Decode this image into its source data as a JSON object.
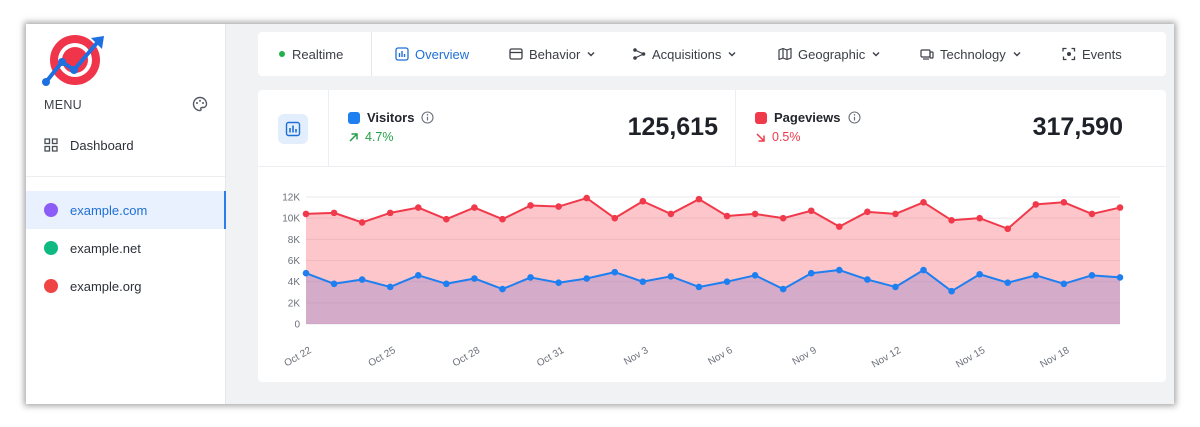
{
  "sidebar": {
    "menu_label": "MENU",
    "dashboard_label": "Dashboard",
    "sites": [
      {
        "label": "example.com",
        "color": "#8b5cf6",
        "active": true
      },
      {
        "label": "example.net",
        "color": "#10b981",
        "active": false
      },
      {
        "label": "example.org",
        "color": "#ef4444",
        "active": false
      }
    ]
  },
  "nav": {
    "tabs": [
      {
        "label": "Realtime",
        "icon": "live-dot-icon"
      },
      {
        "label": "Overview",
        "icon": "bar-chart-icon"
      },
      {
        "label": "Behavior",
        "icon": "window-icon"
      },
      {
        "label": "Acquisitions",
        "icon": "share-nodes-icon"
      },
      {
        "label": "Geographic",
        "icon": "map-icon"
      },
      {
        "label": "Technology",
        "icon": "devices-icon"
      },
      {
        "label": "Events",
        "icon": "focus-icon"
      }
    ],
    "active_tab": "Overview"
  },
  "metrics": {
    "visitors": {
      "label": "Visitors",
      "change": "4.7%",
      "trend": "up",
      "value": "125,615",
      "color": "#1e7ff0"
    },
    "pageviews": {
      "label": "Pageviews",
      "change": "0.5%",
      "trend": "down",
      "value": "317,590",
      "color": "#f03a4b"
    }
  },
  "chart_data": {
    "type": "area",
    "x": [
      "Oct 22",
      "Oct 23",
      "Oct 24",
      "Oct 25",
      "Oct 26",
      "Oct 27",
      "Oct 28",
      "Oct 29",
      "Oct 30",
      "Oct 31",
      "Nov 1",
      "Nov 2",
      "Nov 3",
      "Nov 4",
      "Nov 5",
      "Nov 6",
      "Nov 7",
      "Nov 8",
      "Nov 9",
      "Nov 10",
      "Nov 11",
      "Nov 12",
      "Nov 13",
      "Nov 14",
      "Nov 15",
      "Nov 16",
      "Nov 17",
      "Nov 18",
      "Nov 19",
      "Nov 20"
    ],
    "x_tick_labels": [
      "Oct 22",
      "Oct 25",
      "Oct 28",
      "Oct 31",
      "Nov 3",
      "Nov 6",
      "Nov 9",
      "Nov 12",
      "Nov 15",
      "Nov 18"
    ],
    "y_tick_labels": [
      "0",
      "2K",
      "4K",
      "6K",
      "8K",
      "10K",
      "12K"
    ],
    "ylim": [
      0,
      12000
    ],
    "grid": true,
    "series": [
      {
        "name": "Pageviews",
        "color": "#f03a4b",
        "values": [
          10400,
          10500,
          9600,
          10500,
          11000,
          9900,
          11000,
          9900,
          11200,
          11100,
          11900,
          10000,
          11600,
          10400,
          11800,
          10200,
          10400,
          10000,
          10700,
          9200,
          10600,
          10400,
          11500,
          9800,
          10000,
          9000,
          11300,
          11500,
          10400,
          11000
        ]
      },
      {
        "name": "Visitors",
        "color": "#1e7ff0",
        "values": [
          4800,
          3800,
          4200,
          3500,
          4600,
          3800,
          4300,
          3300,
          4400,
          3900,
          4300,
          4900,
          4000,
          4500,
          3500,
          4000,
          4600,
          3300,
          4800,
          5100,
          4200,
          3500,
          5100,
          3100,
          4700,
          3900,
          4600,
          3800,
          4600,
          4400
        ]
      }
    ]
  }
}
